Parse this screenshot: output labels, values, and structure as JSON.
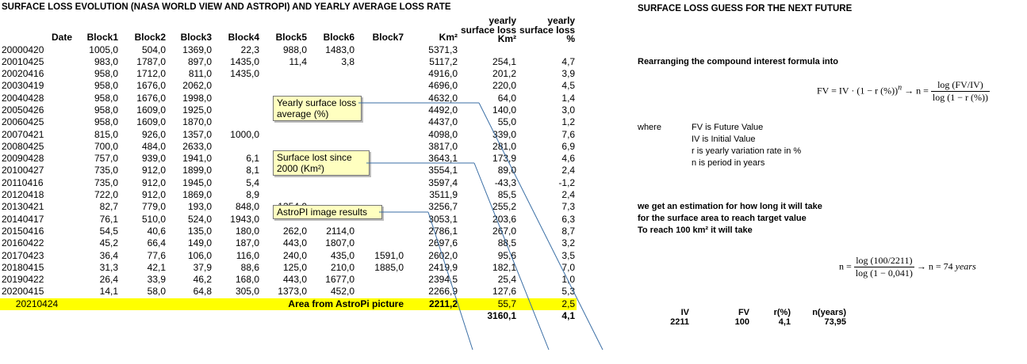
{
  "left": {
    "title": "SURFACE LOSS EVOLUTION (NASA WORLD VIEW AND ASTROPI)  AND YEARLY AVERAGE LOSS RATE",
    "headers": [
      "Date",
      "Block1",
      "Block2",
      "Block3",
      "Block4",
      "Block5",
      "Block6",
      "Block7",
      "Km²",
      "yearly\nsurface loss\nKm²",
      "yearly\nsurface loss\n%"
    ],
    "rows": [
      [
        "20000420",
        "1005,0",
        "504,0",
        "1369,0",
        "22,3",
        "988,0",
        "1483,0",
        "",
        "5371,3",
        "",
        ""
      ],
      [
        "20010425",
        "983,0",
        "1787,0",
        "897,0",
        "1435,0",
        "11,4",
        "3,8",
        "",
        "5117,2",
        "254,1",
        "4,7"
      ],
      [
        "20020416",
        "958,0",
        "1712,0",
        "811,0",
        "1435,0",
        "",
        "",
        "",
        "4916,0",
        "201,2",
        "3,9"
      ],
      [
        "20030419",
        "958,0",
        "1676,0",
        "2062,0",
        "",
        "",
        "",
        "",
        "4696,0",
        "220,0",
        "4,5"
      ],
      [
        "20040428",
        "958,0",
        "1676,0",
        "1998,0",
        "",
        "",
        "",
        "",
        "4632,0",
        "64,0",
        "1,4"
      ],
      [
        "20050426",
        "958,0",
        "1609,0",
        "1925,0",
        "",
        "",
        "",
        "",
        "4492,0",
        "140,0",
        "3,0"
      ],
      [
        "20060425",
        "958,0",
        "1609,0",
        "1870,0",
        "",
        "",
        "",
        "",
        "4437,0",
        "55,0",
        "1,2"
      ],
      [
        "20070421",
        "815,0",
        "926,0",
        "1357,0",
        "1000,0",
        "",
        "",
        "",
        "4098,0",
        "339,0",
        "7,6"
      ],
      [
        "20080425",
        "700,0",
        "484,0",
        "2633,0",
        "",
        "",
        "",
        "",
        "3817,0",
        "281,0",
        "6,9"
      ],
      [
        "20090428",
        "757,0",
        "939,0",
        "1941,0",
        "6,1",
        "",
        "",
        "",
        "3643,1",
        "173,9",
        "4,6"
      ],
      [
        "20100427",
        "735,0",
        "912,0",
        "1899,0",
        "8,1",
        "",
        "",
        "",
        "3554,1",
        "89,0",
        "2,4"
      ],
      [
        "20110416",
        "735,0",
        "912,0",
        "1945,0",
        "5,4",
        "",
        "",
        "",
        "3597,4",
        "-43,3",
        "-1,2"
      ],
      [
        "20120418",
        "722,0",
        "912,0",
        "1869,0",
        "8,9",
        "",
        "",
        "",
        "3511,9",
        "85,5",
        "2,4"
      ],
      [
        "20130421",
        "82,7",
        "779,0",
        "193,0",
        "848,0",
        "1354,0",
        "",
        "",
        "3256,7",
        "255,2",
        "7,3"
      ],
      [
        "20140417",
        "76,1",
        "510,0",
        "524,0",
        "1943,0",
        "",
        "",
        "",
        "3053,1",
        "203,6",
        "6,3"
      ],
      [
        "20150416",
        "54,5",
        "40,6",
        "135,0",
        "180,0",
        "262,0",
        "2114,0",
        "",
        "2786,1",
        "267,0",
        "8,7"
      ],
      [
        "20160422",
        "45,2",
        "66,4",
        "149,0",
        "187,0",
        "443,0",
        "1807,0",
        "",
        "2697,6",
        "88,5",
        "3,2"
      ],
      [
        "20170423",
        "36,4",
        "77,6",
        "106,0",
        "116,0",
        "240,0",
        "435,0",
        "1591,0",
        "2602,0",
        "95,6",
        "3,5"
      ],
      [
        "20180415",
        "31,3",
        "42,1",
        "37,9",
        "88,6",
        "125,0",
        "210,0",
        "1885,0",
        "2419,9",
        "182,1",
        "7,0"
      ],
      [
        "20190422",
        "26,4",
        "33,9",
        "46,2",
        "168,0",
        "443,0",
        "1677,0",
        "",
        "2394,5",
        "25,4",
        "1,0"
      ],
      [
        "20200415",
        "14,1",
        "58,0",
        "64,8",
        "305,0",
        "1373,0",
        "452,0",
        "",
        "2266,9",
        "127,6",
        "5,3"
      ]
    ],
    "highlight_row": {
      "date": "20210424",
      "label": "Area from AstroPi picture",
      "km2": "2211,2",
      "loss_km2": "55,7",
      "loss_pct": "2,5"
    },
    "totals": {
      "loss_km2": "3160,1",
      "loss_pct": "4,1"
    },
    "callouts": {
      "avg": "Yearly surface loss average (%)",
      "lost": "Surface lost since 2000 (Km²)",
      "astropi": "AstroPI image results"
    },
    "colors": {
      "highlight": "#ffff00",
      "callout_bg": "#ffffc0",
      "line": "#3a6ea5"
    }
  },
  "right": {
    "title": "SURFACE LOSS GUESS FOR THE NEXT FUTURE",
    "intro": "Rearranging the compound interest formula into",
    "formula1": {
      "lhs": "FV = IV · (1 − r (%))",
      "exp": "n",
      "arrow": "→ n =",
      "num": "log (FV/IV)",
      "den": "log (1 − r (%))"
    },
    "where_label": "where",
    "definitions": [
      "FV is Future Value",
      "IV is Initial Value",
      "r is yearly variation rate in %",
      "n is period in years"
    ],
    "estimate_lines": [
      "we get an estimation for how long it will take",
      "for the surface area to reach target value",
      "To reach 100 km² it will take"
    ],
    "formula2": {
      "prefix": "n =",
      "num_log": "log (100/2211)",
      "den": "log (1 − 0,041)",
      "result": "→ n = 74",
      "unit": "years"
    },
    "calc_table": {
      "headers": [
        "IV",
        "FV",
        "r(%)",
        "n(years)"
      ],
      "values": [
        "2211",
        "100",
        "4,1",
        "73,95"
      ]
    }
  }
}
